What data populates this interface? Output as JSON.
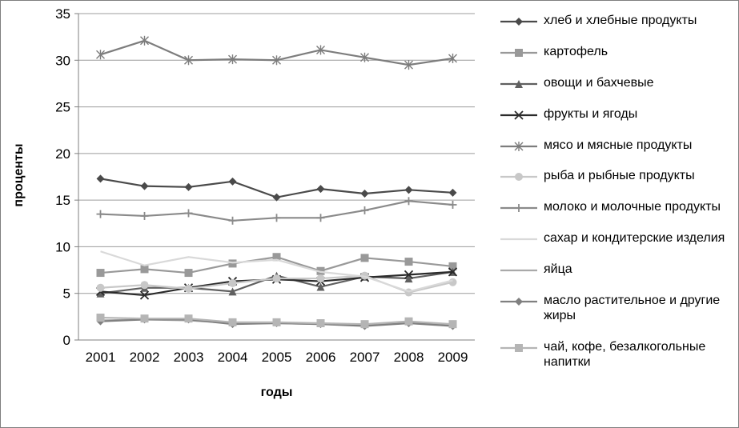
{
  "chart_data": {
    "type": "line",
    "title": "",
    "xlabel": "годы",
    "ylabel": "проценты",
    "ylim": [
      0,
      35
    ],
    "ytick_step": 5,
    "grid": true,
    "legend_position": "right",
    "x": [
      "2001",
      "2002",
      "2003",
      "2004",
      "2005",
      "2006",
      "2007",
      "2008",
      "2009"
    ],
    "series": [
      {
        "name": "хлеб и хлебные продукты",
        "marker": "diamond",
        "color": "#4a4a4a",
        "values": [
          17.3,
          16.5,
          16.4,
          17.0,
          15.3,
          16.2,
          15.7,
          16.1,
          15.8
        ]
      },
      {
        "name": "картофель",
        "marker": "square",
        "color": "#999999",
        "values": [
          7.2,
          7.6,
          7.2,
          8.2,
          8.9,
          7.4,
          8.8,
          8.4,
          7.9
        ]
      },
      {
        "name": "овощи и бахчевые",
        "marker": "triangle",
        "color": "#606060",
        "values": [
          5.0,
          5.6,
          5.6,
          5.2,
          6.9,
          5.7,
          6.8,
          6.6,
          7.3
        ]
      },
      {
        "name": "фрукты и ягоды",
        "marker": "x",
        "color": "#2b2b2b",
        "values": [
          5.2,
          4.8,
          5.6,
          6.3,
          6.5,
          6.3,
          6.7,
          7.0,
          7.3
        ]
      },
      {
        "name": "мясо и мясные продукты",
        "marker": "asterisk",
        "color": "#7d7d7d",
        "values": [
          30.6,
          32.1,
          30.0,
          30.1,
          30.0,
          31.1,
          30.3,
          29.5,
          30.2
        ]
      },
      {
        "name": "рыба и рыбные продукты",
        "marker": "circle",
        "color": "#c8c8c8",
        "values": [
          5.6,
          5.9,
          5.5,
          6.1,
          6.6,
          6.6,
          6.9,
          5.1,
          6.2
        ]
      },
      {
        "name": "молоко и молочные продукты",
        "marker": "plus",
        "color": "#8a8a8a",
        "values": [
          13.5,
          13.3,
          13.6,
          12.8,
          13.1,
          13.1,
          13.9,
          14.9,
          14.5
        ]
      },
      {
        "name": "сахар и кондитерские изделия",
        "marker": "none",
        "color": "#d9d9d9",
        "values": [
          9.5,
          8.0,
          8.9,
          8.3,
          8.6,
          7.3,
          6.8,
          5.2,
          6.4
        ]
      },
      {
        "name": "яйца",
        "marker": "none",
        "color": "#a9a9a9",
        "values": [
          2.1,
          2.2,
          2.1,
          1.8,
          1.8,
          1.7,
          1.6,
          1.8,
          1.6
        ]
      },
      {
        "name": "масло растительное и другие  жиры",
        "marker": "diamond",
        "color": "#808080",
        "values": [
          2.0,
          2.2,
          2.2,
          1.7,
          1.8,
          1.7,
          1.5,
          1.8,
          1.5
        ]
      },
      {
        "name": "чай, кофе, безалкогольные напитки",
        "marker": "square",
        "color": "#b5b5b5",
        "values": [
          2.4,
          2.3,
          2.3,
          1.9,
          1.9,
          1.8,
          1.7,
          2.0,
          1.7
        ]
      }
    ]
  }
}
